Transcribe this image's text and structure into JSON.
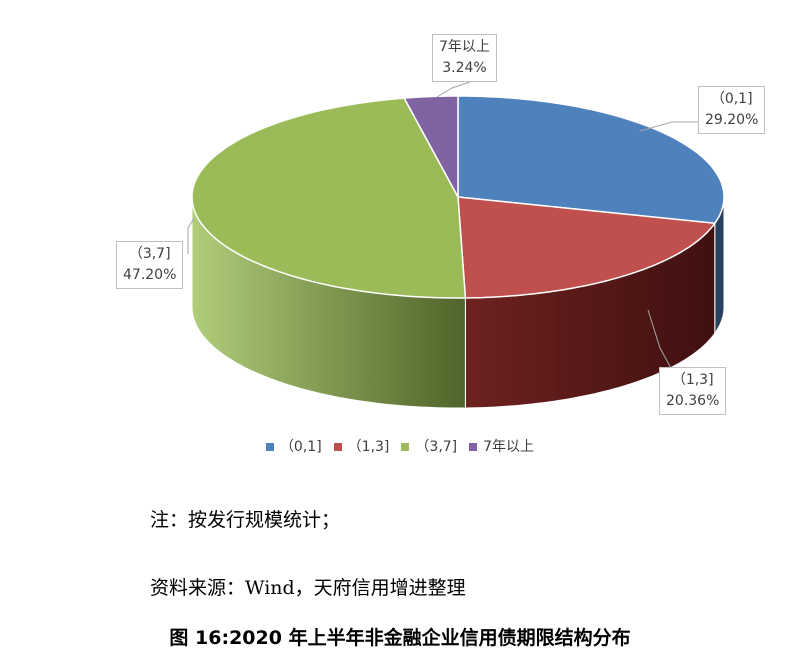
{
  "chart_data": {
    "type": "pie",
    "style": "3d",
    "slices": [
      {
        "label": "（0,1]",
        "value": 29.2,
        "value_label": "29.20%",
        "color": "#4f81bd"
      },
      {
        "label": "（1,3]",
        "value": 20.36,
        "value_label": "20.36%",
        "color": "#c0504d"
      },
      {
        "label": "（3,7]",
        "value": 47.2,
        "value_label": "47.20%",
        "color": "#9bbb59"
      },
      {
        "label": "7年以上",
        "value": 3.24,
        "value_label": "3.24%",
        "color": "#8064a2"
      }
    ],
    "legend": {
      "position": "bottom",
      "entries": [
        "（0,1]",
        "（1,3]",
        "（3,7]",
        "7年以上"
      ]
    }
  },
  "notes": {
    "note_line": "注：按发行规模统计；",
    "source_line": "资料来源：Wind，天府信用增进整理"
  },
  "caption": "图 16:2020 年上半年非金融企业信用债期限结构分布"
}
